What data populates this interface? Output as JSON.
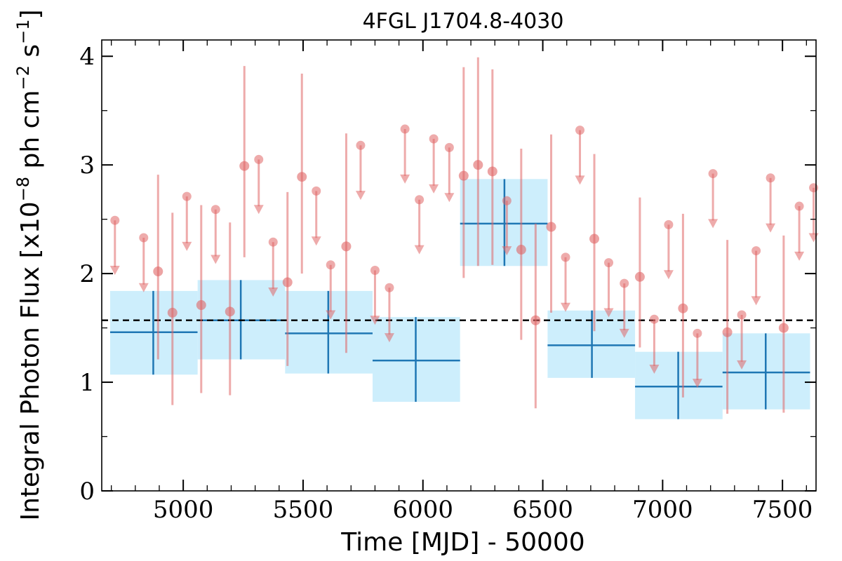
{
  "chart_data": {
    "type": "scatter",
    "title": "4FGL J1704.8-4030",
    "xlabel": "Time [MJD] - 50000",
    "ylabel_parts": [
      "Integral Photon Flux [x10",
      "−8",
      " ph cm",
      "−2",
      " s",
      "−1",
      "]"
    ],
    "xlim": [
      4660,
      7640
    ],
    "ylim": [
      0,
      4.15
    ],
    "x_ticks": [
      5000,
      5500,
      6000,
      6500,
      7000,
      7500
    ],
    "y_ticks": [
      0,
      1,
      2,
      3,
      4
    ],
    "reference_flux": 1.57,
    "colors": {
      "bin_fill": "#cdeefc",
      "bin_line": "#1f77b4",
      "point": "#e06666",
      "reference": "#000000"
    },
    "long_bins": [
      {
        "x0": 4695,
        "x1": 5060,
        "y": 1.46,
        "y_lo": 1.07,
        "y_hi": 1.84,
        "x_err_tick": 4875
      },
      {
        "x0": 5060,
        "x1": 5425,
        "y": 1.57,
        "y_lo": 1.21,
        "y_hi": 1.94,
        "x_err_tick": 5240
      },
      {
        "x0": 5425,
        "x1": 5790,
        "y": 1.45,
        "y_lo": 1.08,
        "y_hi": 1.84,
        "x_err_tick": 5605
      },
      {
        "x0": 5790,
        "x1": 6155,
        "y": 1.2,
        "y_lo": 0.82,
        "y_hi": 1.6,
        "x_err_tick": 5970
      },
      {
        "x0": 6155,
        "x1": 6520,
        "y": 2.46,
        "y_lo": 2.07,
        "y_hi": 2.87,
        "x_err_tick": 6340
      },
      {
        "x0": 6520,
        "x1": 6885,
        "y": 1.34,
        "y_lo": 1.04,
        "y_hi": 1.66,
        "x_err_tick": 6705
      },
      {
        "x0": 6885,
        "x1": 7250,
        "y": 0.96,
        "y_lo": 0.66,
        "y_hi": 1.28,
        "x_err_tick": 7065
      },
      {
        "x0": 7250,
        "x1": 7615,
        "y": 1.09,
        "y_lo": 0.75,
        "y_hi": 1.45,
        "x_err_tick": 7430
      }
    ],
    "detections": [
      {
        "x": 4895,
        "y": 2.02,
        "lo": 1.21,
        "hi": 2.91
      },
      {
        "x": 4955,
        "y": 1.64,
        "lo": 0.79,
        "hi": 2.56
      },
      {
        "x": 5075,
        "y": 1.71,
        "lo": 0.9,
        "hi": 2.63
      },
      {
        "x": 5195,
        "y": 1.65,
        "lo": 0.88,
        "hi": 2.47
      },
      {
        "x": 5255,
        "y": 2.99,
        "lo": 2.15,
        "hi": 3.91
      },
      {
        "x": 5435,
        "y": 1.92,
        "lo": 1.15,
        "hi": 2.75
      },
      {
        "x": 5495,
        "y": 2.89,
        "lo": 2.0,
        "hi": 3.84
      },
      {
        "x": 5680,
        "y": 2.25,
        "lo": 1.27,
        "hi": 3.29
      },
      {
        "x": 6170,
        "y": 2.9,
        "lo": 1.96,
        "hi": 3.9
      },
      {
        "x": 6230,
        "y": 3.0,
        "lo": 2.07,
        "hi": 3.99
      },
      {
        "x": 6290,
        "y": 2.94,
        "lo": 2.08,
        "hi": 3.88
      },
      {
        "x": 6410,
        "y": 2.22,
        "lo": 1.39,
        "hi": 3.15
      },
      {
        "x": 6470,
        "y": 1.57,
        "lo": 0.76,
        "hi": 2.46
      },
      {
        "x": 6535,
        "y": 2.43,
        "lo": 1.64,
        "hi": 3.28
      },
      {
        "x": 6715,
        "y": 2.32,
        "lo": 1.47,
        "hi": 3.1
      },
      {
        "x": 6905,
        "y": 1.97,
        "lo": 1.32,
        "hi": 2.7
      },
      {
        "x": 7085,
        "y": 1.68,
        "lo": 0.86,
        "hi": 2.55
      },
      {
        "x": 7270,
        "y": 1.46,
        "lo": 0.71,
        "hi": 2.31
      },
      {
        "x": 7505,
        "y": 1.5,
        "lo": 0.72,
        "hi": 2.35
      }
    ],
    "upper_limits": [
      {
        "x": 4715,
        "y": 2.49,
        "tip": 2.02
      },
      {
        "x": 4835,
        "y": 2.33,
        "tip": 1.86
      },
      {
        "x": 5015,
        "y": 2.71,
        "tip": 2.24
      },
      {
        "x": 5135,
        "y": 2.59,
        "tip": 2.12
      },
      {
        "x": 5315,
        "y": 3.05,
        "tip": 2.58
      },
      {
        "x": 5375,
        "y": 2.29,
        "tip": 1.82
      },
      {
        "x": 5555,
        "y": 2.76,
        "tip": 2.29
      },
      {
        "x": 5615,
        "y": 2.08,
        "tip": 1.61
      },
      {
        "x": 5740,
        "y": 3.18,
        "tip": 2.71
      },
      {
        "x": 5800,
        "y": 2.03,
        "tip": 1.56
      },
      {
        "x": 5860,
        "y": 1.87,
        "tip": 1.4
      },
      {
        "x": 5925,
        "y": 3.33,
        "tip": 2.86
      },
      {
        "x": 5985,
        "y": 2.68,
        "tip": 2.21
      },
      {
        "x": 6045,
        "y": 3.24,
        "tip": 2.77
      },
      {
        "x": 6110,
        "y": 3.16,
        "tip": 2.69
      },
      {
        "x": 6350,
        "y": 2.67,
        "tip": 2.2
      },
      {
        "x": 6595,
        "y": 2.15,
        "tip": 1.68
      },
      {
        "x": 6655,
        "y": 3.32,
        "tip": 2.85
      },
      {
        "x": 6775,
        "y": 2.1,
        "tip": 1.63
      },
      {
        "x": 6840,
        "y": 1.91,
        "tip": 1.44
      },
      {
        "x": 6965,
        "y": 1.58,
        "tip": 1.11
      },
      {
        "x": 7025,
        "y": 2.45,
        "tip": 1.98
      },
      {
        "x": 7145,
        "y": 1.45,
        "tip": 0.98
      },
      {
        "x": 7210,
        "y": 2.92,
        "tip": 2.45
      },
      {
        "x": 7330,
        "y": 1.62,
        "tip": 1.15
      },
      {
        "x": 7390,
        "y": 2.21,
        "tip": 1.74
      },
      {
        "x": 7450,
        "y": 2.88,
        "tip": 2.41
      },
      {
        "x": 7570,
        "y": 2.62,
        "tip": 2.15
      },
      {
        "x": 7630,
        "y": 2.79,
        "tip": 2.32
      }
    ]
  }
}
